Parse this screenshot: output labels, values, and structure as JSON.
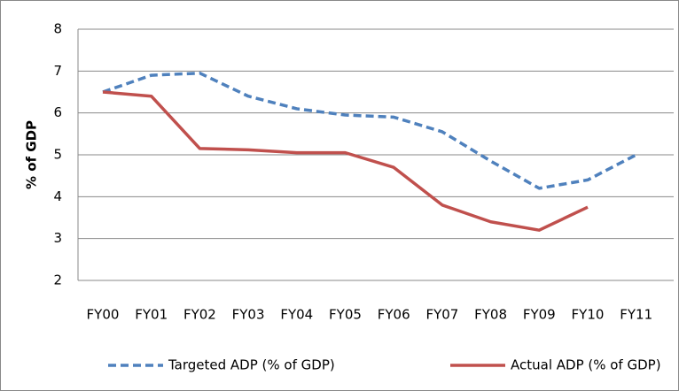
{
  "chart_data": {
    "type": "line",
    "y_label": "% of GDP",
    "categories": [
      "FY00",
      "FY01",
      "FY02",
      "FY03",
      "FY04",
      "FY05",
      "FY06",
      "FY07",
      "FY08",
      "FY09",
      "FY10",
      "FY11"
    ],
    "series": [
      {
        "name": "Targeted ADP (% of GDP)",
        "color": "#4f81bd",
        "dashed": true,
        "values": [
          6.5,
          6.9,
          6.95,
          6.4,
          6.1,
          5.95,
          5.9,
          5.55,
          4.85,
          4.2,
          4.4,
          5.0
        ]
      },
      {
        "name": "Actual ADP (% of GDP)",
        "color": "#c0504d",
        "dashed": false,
        "values": [
          6.5,
          6.4,
          5.15,
          5.12,
          5.05,
          5.05,
          4.7,
          3.8,
          3.4,
          3.2,
          3.75,
          null
        ]
      }
    ],
    "ylim": [
      2,
      8
    ],
    "yticks": [
      2,
      3,
      4,
      5,
      6,
      7,
      8
    ],
    "grid": true,
    "legend": "bottom"
  }
}
